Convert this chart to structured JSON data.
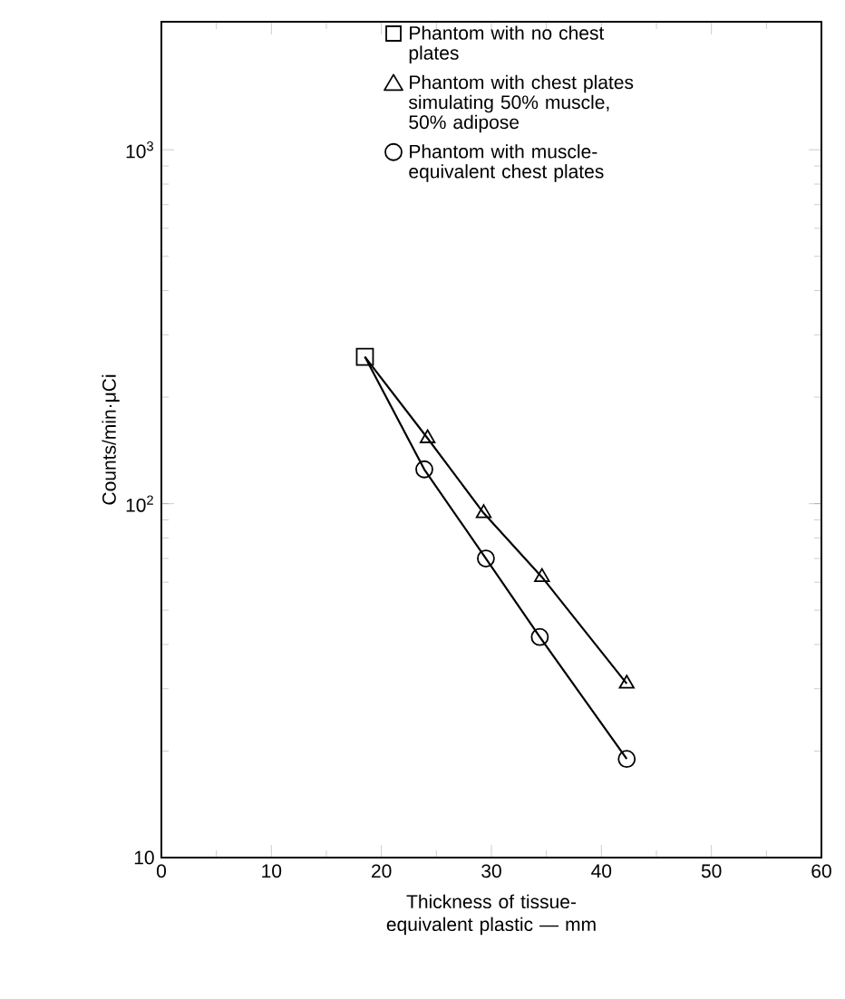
{
  "chart_data": {
    "type": "scatter",
    "xlabel": "Thickness of tissue-equivalent plastic — mm",
    "ylabel": "Counts/min·μCi",
    "log": "y",
    "xlim": [
      0,
      60
    ],
    "xticks": [
      0,
      10,
      20,
      30,
      40,
      50,
      60
    ],
    "ylim": [
      10,
      2300
    ],
    "yticks": [
      10,
      {
        "value": 100,
        "label": "10$^{2}$"
      },
      {
        "value": 1000,
        "label": "10$^{3}$"
      }
    ],
    "grid": false,
    "legend": "top right",
    "series": [
      {
        "name": "Phantom with no chest plates",
        "color": "#000000",
        "marker": "square",
        "x": [
          18.5
        ],
        "values": [
          260
        ]
      },
      {
        "name": "Phantom with chest plates simulating 50% muscle, 50% adipose",
        "color": "#000000",
        "marker": "triangle",
        "x": [
          24.2,
          29.3,
          34.6,
          42.3
        ],
        "values": [
          153,
          94,
          62,
          31
        ]
      },
      {
        "name": "Phantom with muscle-equivalent chest plates",
        "color": "#000000",
        "marker": "circle",
        "x": [
          23.9,
          29.5,
          34.4,
          42.3
        ],
        "values": [
          125,
          70,
          42,
          19
        ]
      },
      {
        "type": "line",
        "color": "#000000",
        "marker": "none",
        "x": [
          18.5,
          24.2,
          29.3,
          34.6,
          42.3
        ],
        "values": [
          260,
          153,
          94,
          62,
          31
        ]
      },
      {
        "type": "line",
        "color": "#000000",
        "marker": "none",
        "x": [
          18.5,
          23.9,
          29.5,
          34.4,
          42.3
        ],
        "values": [
          260,
          125,
          70,
          42,
          19
        ]
      }
    ]
  }
}
